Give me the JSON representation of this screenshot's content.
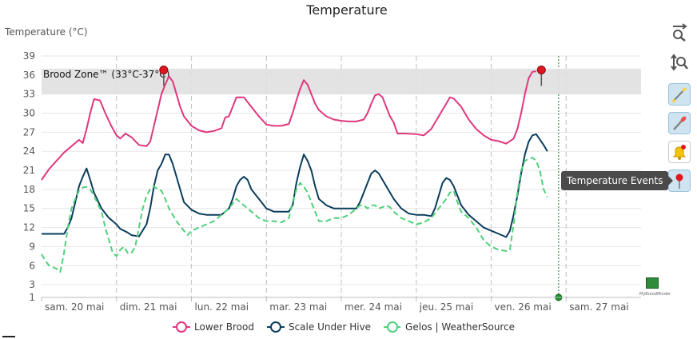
{
  "chart_data": {
    "type": "line",
    "title": "Temperature",
    "ylabel": "Temperature (°C)",
    "ylim": [
      1,
      39
    ],
    "yticks": [
      1,
      3,
      6,
      9,
      12,
      15,
      18,
      21,
      24,
      27,
      30,
      33,
      36,
      39
    ],
    "xlim": [
      0,
      8
    ],
    "categories": [
      "sam. 20 mai",
      "dim. 21 mai",
      "lun. 22 mai",
      "mar. 23 mai",
      "mer. 24 mai",
      "jeu. 25 mai",
      "ven. 26 mai",
      "sam. 27 mai"
    ],
    "grid": true,
    "legend_position": "bottom",
    "band": {
      "label": "Brood Zone™ (33°C-37°C)",
      "from": 33,
      "to": 37,
      "color": "#e0e0e0"
    },
    "markers": [
      {
        "x": 1.63,
        "y": 36.8,
        "color": "#e0161e"
      },
      {
        "x": 6.67,
        "y": 36.8,
        "color": "#e0161e"
      }
    ],
    "current_time_x": 6.9,
    "series": [
      {
        "name": "Lower Brood",
        "color": "#e0377f",
        "dashed": false,
        "points": [
          [
            0.0,
            19.5
          ],
          [
            0.1,
            21.2
          ],
          [
            0.2,
            22.5
          ],
          [
            0.3,
            23.8
          ],
          [
            0.4,
            24.8
          ],
          [
            0.5,
            25.8
          ],
          [
            0.55,
            25.3
          ],
          [
            0.6,
            27.5
          ],
          [
            0.65,
            30.0
          ],
          [
            0.7,
            32.2
          ],
          [
            0.78,
            32.0
          ],
          [
            0.85,
            30.0
          ],
          [
            0.93,
            28.0
          ],
          [
            1.0,
            26.5
          ],
          [
            1.05,
            26.0
          ],
          [
            1.12,
            26.8
          ],
          [
            1.2,
            26.2
          ],
          [
            1.3,
            25.0
          ],
          [
            1.4,
            24.8
          ],
          [
            1.45,
            25.5
          ],
          [
            1.5,
            28.0
          ],
          [
            1.55,
            30.5
          ],
          [
            1.6,
            33.0
          ],
          [
            1.65,
            34.5
          ],
          [
            1.7,
            35.8
          ],
          [
            1.75,
            35.0
          ],
          [
            1.8,
            33.0
          ],
          [
            1.85,
            31.0
          ],
          [
            1.9,
            29.5
          ],
          [
            2.0,
            28.0
          ],
          [
            2.1,
            27.3
          ],
          [
            2.2,
            27.0
          ],
          [
            2.3,
            27.2
          ],
          [
            2.4,
            27.6
          ],
          [
            2.45,
            29.3
          ],
          [
            2.5,
            29.5
          ],
          [
            2.55,
            31.0
          ],
          [
            2.6,
            32.5
          ],
          [
            2.7,
            32.5
          ],
          [
            2.8,
            31.0
          ],
          [
            2.9,
            29.5
          ],
          [
            3.0,
            28.2
          ],
          [
            3.1,
            28.0
          ],
          [
            3.2,
            28.0
          ],
          [
            3.3,
            28.3
          ],
          [
            3.35,
            30.0
          ],
          [
            3.4,
            32.0
          ],
          [
            3.45,
            33.8
          ],
          [
            3.5,
            35.2
          ],
          [
            3.55,
            34.5
          ],
          [
            3.6,
            33.0
          ],
          [
            3.65,
            31.5
          ],
          [
            3.7,
            30.5
          ],
          [
            3.8,
            29.5
          ],
          [
            3.9,
            29.0
          ],
          [
            4.0,
            28.8
          ],
          [
            4.1,
            28.7
          ],
          [
            4.2,
            28.7
          ],
          [
            4.3,
            29.0
          ],
          [
            4.35,
            30.0
          ],
          [
            4.4,
            31.5
          ],
          [
            4.45,
            32.8
          ],
          [
            4.5,
            33.0
          ],
          [
            4.55,
            32.5
          ],
          [
            4.6,
            31.0
          ],
          [
            4.65,
            29.5
          ],
          [
            4.7,
            28.5
          ],
          [
            4.75,
            26.8
          ],
          [
            4.85,
            26.8
          ],
          [
            5.0,
            26.7
          ],
          [
            5.1,
            26.5
          ],
          [
            5.2,
            27.5
          ],
          [
            5.3,
            29.5
          ],
          [
            5.4,
            31.5
          ],
          [
            5.45,
            32.5
          ],
          [
            5.5,
            32.3
          ],
          [
            5.6,
            31.0
          ],
          [
            5.7,
            29.0
          ],
          [
            5.8,
            27.5
          ],
          [
            5.9,
            26.5
          ],
          [
            6.0,
            25.8
          ],
          [
            6.1,
            25.6
          ],
          [
            6.2,
            25.2
          ],
          [
            6.3,
            26.0
          ],
          [
            6.35,
            27.5
          ],
          [
            6.4,
            30.0
          ],
          [
            6.45,
            33.0
          ],
          [
            6.5,
            35.5
          ],
          [
            6.55,
            36.5
          ],
          [
            6.6,
            36.6
          ]
        ]
      },
      {
        "name": "Scale Under Hive",
        "color": "#0b3d5c",
        "dashed": false,
        "points": [
          [
            0.0,
            11.0
          ],
          [
            0.2,
            11.0
          ],
          [
            0.3,
            11.0
          ],
          [
            0.35,
            12.0
          ],
          [
            0.4,
            13.5
          ],
          [
            0.45,
            16.0
          ],
          [
            0.5,
            18.5
          ],
          [
            0.55,
            20.0
          ],
          [
            0.6,
            21.3
          ],
          [
            0.65,
            19.5
          ],
          [
            0.7,
            17.5
          ],
          [
            0.8,
            15.0
          ],
          [
            0.9,
            13.5
          ],
          [
            1.0,
            12.5
          ],
          [
            1.05,
            11.8
          ],
          [
            1.15,
            11.2
          ],
          [
            1.2,
            10.8
          ],
          [
            1.3,
            10.6
          ],
          [
            1.4,
            12.5
          ],
          [
            1.45,
            15.0
          ],
          [
            1.5,
            18.5
          ],
          [
            1.55,
            21.0
          ],
          [
            1.6,
            22.0
          ],
          [
            1.65,
            23.5
          ],
          [
            1.7,
            23.5
          ],
          [
            1.75,
            22.0
          ],
          [
            1.8,
            20.0
          ],
          [
            1.85,
            18.0
          ],
          [
            1.9,
            16.0
          ],
          [
            2.0,
            14.8
          ],
          [
            2.1,
            14.2
          ],
          [
            2.2,
            14.0
          ],
          [
            2.3,
            14.0
          ],
          [
            2.4,
            14.0
          ],
          [
            2.45,
            14.5
          ],
          [
            2.5,
            15.0
          ],
          [
            2.55,
            16.5
          ],
          [
            2.6,
            18.5
          ],
          [
            2.65,
            19.5
          ],
          [
            2.7,
            20.0
          ],
          [
            2.75,
            19.5
          ],
          [
            2.8,
            18.0
          ],
          [
            2.9,
            16.5
          ],
          [
            3.0,
            15.0
          ],
          [
            3.1,
            14.5
          ],
          [
            3.2,
            14.5
          ],
          [
            3.3,
            14.5
          ],
          [
            3.35,
            15.5
          ],
          [
            3.4,
            19.0
          ],
          [
            3.45,
            21.5
          ],
          [
            3.5,
            23.5
          ],
          [
            3.55,
            22.5
          ],
          [
            3.6,
            21.0
          ],
          [
            3.65,
            18.5
          ],
          [
            3.7,
            16.5
          ],
          [
            3.8,
            15.5
          ],
          [
            3.9,
            15.0
          ],
          [
            4.0,
            15.0
          ],
          [
            4.1,
            15.0
          ],
          [
            4.2,
            15.0
          ],
          [
            4.25,
            16.0
          ],
          [
            4.3,
            17.5
          ],
          [
            4.35,
            19.0
          ],
          [
            4.4,
            20.5
          ],
          [
            4.45,
            21.0
          ],
          [
            4.5,
            20.5
          ],
          [
            4.55,
            19.5
          ],
          [
            4.6,
            18.5
          ],
          [
            4.7,
            16.5
          ],
          [
            4.8,
            15.0
          ],
          [
            4.9,
            14.2
          ],
          [
            5.0,
            14.0
          ],
          [
            5.1,
            14.0
          ],
          [
            5.2,
            13.8
          ],
          [
            5.25,
            15.0
          ],
          [
            5.3,
            17.0
          ],
          [
            5.35,
            19.0
          ],
          [
            5.4,
            19.8
          ],
          [
            5.45,
            19.5
          ],
          [
            5.5,
            18.5
          ],
          [
            5.55,
            17.0
          ],
          [
            5.6,
            15.5
          ],
          [
            5.7,
            14.0
          ],
          [
            5.8,
            13.0
          ],
          [
            5.9,
            12.0
          ],
          [
            6.0,
            11.5
          ],
          [
            6.1,
            11.0
          ],
          [
            6.2,
            10.5
          ],
          [
            6.25,
            11.5
          ],
          [
            6.3,
            14.0
          ],
          [
            6.35,
            17.0
          ],
          [
            6.4,
            20.5
          ],
          [
            6.45,
            23.5
          ],
          [
            6.5,
            25.5
          ],
          [
            6.55,
            26.5
          ],
          [
            6.6,
            26.7
          ],
          [
            6.7,
            25.0
          ],
          [
            6.75,
            24.0
          ]
        ]
      },
      {
        "name": "Gelos | WeatherSource",
        "color": "#4ed07a",
        "dashed": true,
        "points": [
          [
            0.0,
            7.8
          ],
          [
            0.05,
            6.8
          ],
          [
            0.1,
            6.0
          ],
          [
            0.2,
            5.5
          ],
          [
            0.25,
            5.0
          ],
          [
            0.3,
            8.0
          ],
          [
            0.35,
            12.0
          ],
          [
            0.4,
            15.0
          ],
          [
            0.45,
            16.5
          ],
          [
            0.5,
            17.8
          ],
          [
            0.55,
            18.3
          ],
          [
            0.6,
            18.4
          ],
          [
            0.65,
            18.0
          ],
          [
            0.7,
            17.0
          ],
          [
            0.8,
            14.5
          ],
          [
            0.85,
            12.0
          ],
          [
            0.9,
            10.0
          ],
          [
            0.95,
            8.0
          ],
          [
            1.0,
            7.5
          ],
          [
            1.05,
            8.5
          ],
          [
            1.1,
            9.0
          ],
          [
            1.15,
            8.0
          ],
          [
            1.2,
            8.0
          ],
          [
            1.25,
            9.0
          ],
          [
            1.3,
            12.0
          ],
          [
            1.35,
            15.0
          ],
          [
            1.4,
            17.0
          ],
          [
            1.45,
            18.0
          ],
          [
            1.5,
            18.5
          ],
          [
            1.55,
            18.0
          ],
          [
            1.6,
            17.8
          ],
          [
            1.65,
            16.5
          ],
          [
            1.7,
            15.0
          ],
          [
            1.8,
            13.0
          ],
          [
            1.9,
            11.5
          ],
          [
            1.95,
            10.8
          ],
          [
            2.0,
            11.5
          ],
          [
            2.1,
            12.0
          ],
          [
            2.2,
            12.5
          ],
          [
            2.3,
            13.0
          ],
          [
            2.4,
            14.0
          ],
          [
            2.5,
            15.0
          ],
          [
            2.6,
            16.5
          ],
          [
            2.7,
            15.5
          ],
          [
            2.8,
            14.5
          ],
          [
            2.9,
            13.5
          ],
          [
            3.0,
            13.0
          ],
          [
            3.1,
            13.0
          ],
          [
            3.2,
            12.8
          ],
          [
            3.3,
            13.5
          ],
          [
            3.35,
            16.0
          ],
          [
            3.4,
            18.0
          ],
          [
            3.45,
            19.0
          ],
          [
            3.5,
            18.5
          ],
          [
            3.55,
            17.5
          ],
          [
            3.6,
            16.0
          ],
          [
            3.65,
            14.5
          ],
          [
            3.7,
            13.0
          ],
          [
            3.8,
            13.0
          ],
          [
            3.9,
            13.5
          ],
          [
            4.0,
            13.5
          ],
          [
            4.1,
            14.0
          ],
          [
            4.2,
            15.0
          ],
          [
            4.25,
            15.5
          ],
          [
            4.3,
            15.5
          ],
          [
            4.35,
            15.0
          ],
          [
            4.4,
            15.5
          ],
          [
            4.45,
            15.5
          ],
          [
            4.5,
            15.0
          ],
          [
            4.55,
            15.2
          ],
          [
            4.6,
            15.5
          ],
          [
            4.65,
            15.2
          ],
          [
            4.7,
            14.5
          ],
          [
            4.8,
            13.5
          ],
          [
            4.9,
            13.0
          ],
          [
            5.0,
            12.5
          ],
          [
            5.1,
            12.8
          ],
          [
            5.2,
            13.5
          ],
          [
            5.3,
            15.0
          ],
          [
            5.4,
            16.5
          ],
          [
            5.45,
            17.5
          ],
          [
            5.5,
            17.8
          ],
          [
            5.55,
            16.0
          ],
          [
            5.6,
            14.5
          ],
          [
            5.7,
            13.5
          ],
          [
            5.8,
            12.0
          ],
          [
            5.9,
            10.0
          ],
          [
            6.0,
            9.0
          ],
          [
            6.1,
            8.5
          ],
          [
            6.2,
            8.3
          ],
          [
            6.25,
            8.5
          ],
          [
            6.3,
            12.5
          ],
          [
            6.35,
            17.5
          ],
          [
            6.4,
            21.0
          ],
          [
            6.45,
            22.5
          ],
          [
            6.5,
            22.8
          ],
          [
            6.55,
            23.0
          ],
          [
            6.6,
            22.5
          ],
          [
            6.65,
            21.0
          ],
          [
            6.7,
            18.0
          ],
          [
            6.75,
            16.8
          ]
        ]
      }
    ]
  },
  "ui": {
    "tooltip_text": "Temperature Events",
    "tools": [
      "zoom-x-icon",
      "zoom-y-icon",
      "paintbrush-thin-icon",
      "paintbrush-red-icon",
      "bell-alert-icon",
      "pushpin-icon"
    ],
    "logo_text": "MyBroodMinder"
  }
}
